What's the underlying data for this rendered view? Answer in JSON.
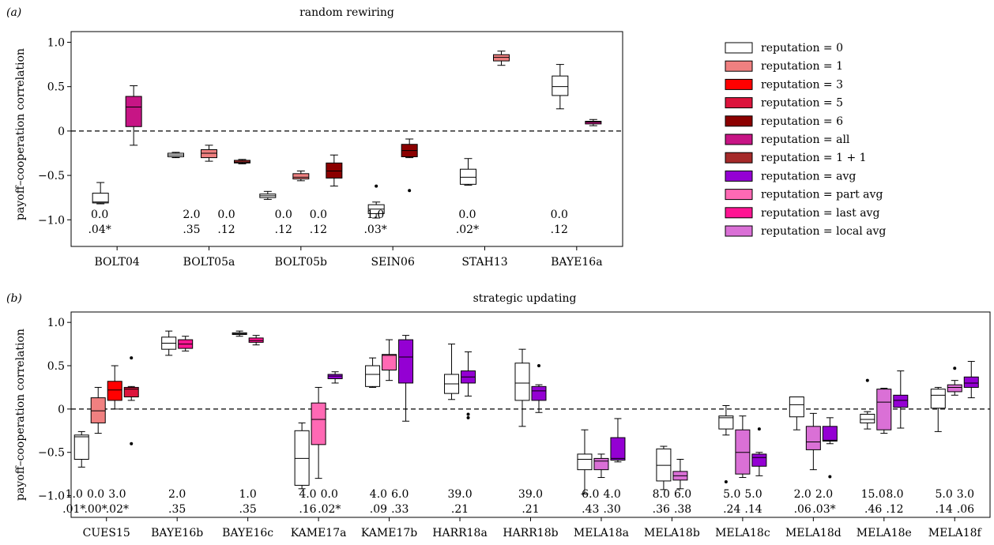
{
  "colors": {
    "rep0": "#ffffff",
    "rep1": "#f08080",
    "rep3": "#ff0000",
    "rep5": "#dc143c",
    "rep6": "#8b0000",
    "repall": "#c71585",
    "rep11": "#a52a2a",
    "repavg": "#9400d3",
    "reppartavg": "#ff69b4",
    "replastavg": "#ff1493",
    "replocalavg": "#da70d6"
  },
  "legend": [
    {
      "key": "rep0",
      "label": "reputation = 0"
    },
    {
      "key": "rep1",
      "label": "reputation = 1"
    },
    {
      "key": "rep3",
      "label": "reputation = 3"
    },
    {
      "key": "rep5",
      "label": "reputation = 5"
    },
    {
      "key": "rep6",
      "label": "reputation = 6"
    },
    {
      "key": "repall",
      "label": "reputation = all"
    },
    {
      "key": "rep11",
      "label": "reputation = 1 + 1"
    },
    {
      "key": "repavg",
      "label": "reputation = avg"
    },
    {
      "key": "reppartavg",
      "label": "reputation = part avg"
    },
    {
      "key": "replastavg",
      "label": "reputation = last avg"
    },
    {
      "key": "replocalavg",
      "label": "reputation = local avg"
    }
  ],
  "chart_data": [
    {
      "type": "box",
      "panel": "(a)",
      "title": "random rewiring",
      "ylabel": "payoff–cooperation correlation",
      "ylim": [
        -1.3,
        1.12
      ],
      "yticks": [
        1.0,
        0.5,
        0,
        -0.5,
        -1.0
      ],
      "ytick_labels": [
        "1.0",
        "0.5",
        "0",
        "−0.5",
        "−1.0"
      ],
      "reference_line": 0,
      "categories": [
        "BOLT04",
        "BOLT05a",
        "BOLT05b",
        "SEIN06",
        "STAH13",
        "BAYE16a"
      ],
      "boxes": [
        {
          "cat": 0,
          "slot": 0,
          "n": 2,
          "rep": "rep0",
          "min": -0.82,
          "q1": -0.81,
          "med": -0.8,
          "q3": -0.7,
          "max": -0.58,
          "outliers": []
        },
        {
          "cat": 0,
          "slot": 1,
          "n": 2,
          "rep": "repall",
          "min": -0.16,
          "q1": 0.05,
          "med": 0.27,
          "q3": 0.39,
          "max": 0.51,
          "outliers": []
        },
        {
          "cat": 1,
          "slot": 0,
          "n": 3,
          "rep": "rep0",
          "min": -0.3,
          "q1": -0.29,
          "med": -0.27,
          "q3": -0.25,
          "max": -0.24,
          "outliers": []
        },
        {
          "cat": 1,
          "slot": 1,
          "n": 3,
          "rep": "rep1",
          "min": -0.34,
          "q1": -0.3,
          "med": -0.25,
          "q3": -0.21,
          "max": -0.16,
          "outliers": []
        },
        {
          "cat": 1,
          "slot": 2,
          "n": 3,
          "rep": "rep11",
          "min": -0.37,
          "q1": -0.36,
          "med": -0.35,
          "q3": -0.33,
          "max": -0.32,
          "outliers": []
        },
        {
          "cat": 2,
          "slot": 0,
          "n": 3,
          "rep": "rep0",
          "min": -0.77,
          "q1": -0.75,
          "med": -0.73,
          "q3": -0.71,
          "max": -0.68,
          "outliers": []
        },
        {
          "cat": 2,
          "slot": 1,
          "n": 3,
          "rep": "rep1",
          "min": -0.56,
          "q1": -0.54,
          "med": -0.52,
          "q3": -0.48,
          "max": -0.45,
          "outliers": []
        },
        {
          "cat": 2,
          "slot": 2,
          "n": 3,
          "rep": "rep6",
          "min": -0.62,
          "q1": -0.53,
          "med": -0.45,
          "q3": -0.36,
          "max": -0.27,
          "outliers": []
        },
        {
          "cat": 3,
          "slot": 0,
          "n": 2,
          "rep": "rep0",
          "min": -0.98,
          "q1": -0.93,
          "med": -0.88,
          "q3": -0.83,
          "max": -0.8,
          "outliers": [
            -0.62
          ]
        },
        {
          "cat": 3,
          "slot": 1,
          "n": 2,
          "rep": "rep6",
          "min": -0.3,
          "q1": -0.29,
          "med": -0.22,
          "q3": -0.15,
          "max": -0.09,
          "outliers": [
            -0.67
          ]
        },
        {
          "cat": 4,
          "slot": 0,
          "n": 2,
          "rep": "rep0",
          "min": -0.61,
          "q1": -0.6,
          "med": -0.52,
          "q3": -0.43,
          "max": -0.31,
          "outliers": []
        },
        {
          "cat": 4,
          "slot": 1,
          "n": 2,
          "rep": "rep1",
          "min": 0.74,
          "q1": 0.79,
          "med": 0.83,
          "q3": 0.86,
          "max": 0.9,
          "outliers": []
        },
        {
          "cat": 5,
          "slot": 0,
          "n": 2,
          "rep": "rep0",
          "min": 0.25,
          "q1": 0.4,
          "med": 0.5,
          "q3": 0.62,
          "max": 0.75,
          "outliers": []
        },
        {
          "cat": 5,
          "slot": 1,
          "n": 2,
          "rep": "repall",
          "min": 0.06,
          "q1": 0.08,
          "med": 0.1,
          "q3": 0.11,
          "max": 0.13,
          "outliers": []
        }
      ],
      "stats": [
        {
          "cat": 0,
          "slot": 0,
          "n": 2,
          "top": "0.0",
          "bottom": ".04*"
        },
        {
          "cat": 1,
          "slot": 0,
          "n": 2,
          "top": "2.0",
          "bottom": ".35"
        },
        {
          "cat": 1,
          "slot": 1,
          "n": 2,
          "top": "0.0",
          "bottom": ".12"
        },
        {
          "cat": 2,
          "slot": 0,
          "n": 2,
          "top": "0.0",
          "bottom": ".12"
        },
        {
          "cat": 2,
          "slot": 1,
          "n": 2,
          "top": "0.0",
          "bottom": ".12"
        },
        {
          "cat": 3,
          "slot": 0,
          "n": 2,
          "top": "1.0",
          "bottom": ".03*"
        },
        {
          "cat": 4,
          "slot": 0,
          "n": 2,
          "top": "0.0",
          "bottom": ".02*"
        },
        {
          "cat": 5,
          "slot": 0,
          "n": 2,
          "top": "0.0",
          "bottom": ".12"
        }
      ]
    },
    {
      "type": "box",
      "panel": "(b)",
      "title": "strategic updating",
      "ylabel": "payoff–cooperation correlation",
      "ylim": [
        -1.25,
        1.12
      ],
      "yticks": [
        1.0,
        0.5,
        0,
        -0.5,
        -1.0
      ],
      "ytick_labels": [
        "1.0",
        "0.5",
        "0",
        "−0.5",
        "−1.0"
      ],
      "reference_line": 0,
      "categories": [
        "CUES15",
        "BAYE16b",
        "BAYE16c",
        "KAME17a",
        "KAME17b",
        "HARR18a",
        "HARR18b",
        "MELA18a",
        "MELA18b",
        "MELA18c",
        "MELA18d",
        "MELA18e",
        "MELA18f"
      ],
      "boxes": [
        {
          "cat": 0,
          "slot": 0,
          "n": 4,
          "rep": "rep0",
          "min": -0.67,
          "q1": -0.58,
          "med": -0.32,
          "q3": -0.3,
          "max": -0.26,
          "outliers": []
        },
        {
          "cat": 0,
          "slot": 1,
          "n": 4,
          "rep": "rep1",
          "min": -0.28,
          "q1": -0.16,
          "med": -0.02,
          "q3": 0.13,
          "max": 0.25,
          "outliers": []
        },
        {
          "cat": 0,
          "slot": 2,
          "n": 4,
          "rep": "rep3",
          "min": 0.0,
          "q1": 0.1,
          "med": 0.22,
          "q3": 0.32,
          "max": 0.5,
          "outliers": []
        },
        {
          "cat": 0,
          "slot": 3,
          "n": 4,
          "rep": "rep5",
          "min": 0.1,
          "q1": 0.14,
          "med": 0.23,
          "q3": 0.25,
          "max": 0.26,
          "outliers": [
            0.59,
            -0.4
          ]
        },
        {
          "cat": 1,
          "slot": 0,
          "n": 2,
          "rep": "rep0",
          "min": 0.62,
          "q1": 0.69,
          "med": 0.76,
          "q3": 0.83,
          "max": 0.9,
          "outliers": []
        },
        {
          "cat": 1,
          "slot": 1,
          "n": 2,
          "rep": "replastavg",
          "min": 0.67,
          "q1": 0.7,
          "med": 0.75,
          "q3": 0.8,
          "max": 0.84,
          "outliers": []
        },
        {
          "cat": 2,
          "slot": 0,
          "n": 2,
          "rep": "rep0",
          "min": 0.84,
          "q1": 0.86,
          "med": 0.87,
          "q3": 0.88,
          "max": 0.9,
          "outliers": []
        },
        {
          "cat": 2,
          "slot": 1,
          "n": 2,
          "rep": "replastavg",
          "min": 0.74,
          "q1": 0.77,
          "med": 0.79,
          "q3": 0.82,
          "max": 0.85,
          "outliers": []
        },
        {
          "cat": 3,
          "slot": 0,
          "n": 3,
          "rep": "rep0",
          "min": -0.92,
          "q1": -0.88,
          "med": -0.57,
          "q3": -0.25,
          "max": -0.16,
          "outliers": []
        },
        {
          "cat": 3,
          "slot": 1,
          "n": 3,
          "rep": "reppartavg",
          "min": -0.8,
          "q1": -0.41,
          "med": -0.12,
          "q3": 0.07,
          "max": 0.25,
          "outliers": []
        },
        {
          "cat": 3,
          "slot": 2,
          "n": 3,
          "rep": "repavg",
          "min": 0.3,
          "q1": 0.35,
          "med": 0.38,
          "q3": 0.4,
          "max": 0.43,
          "outliers": []
        },
        {
          "cat": 4,
          "slot": 0,
          "n": 3,
          "rep": "rep0",
          "min": 0.25,
          "q1": 0.26,
          "med": 0.4,
          "q3": 0.5,
          "max": 0.59,
          "outliers": []
        },
        {
          "cat": 4,
          "slot": 1,
          "n": 3,
          "rep": "reppartavg",
          "min": 0.33,
          "q1": 0.45,
          "med": 0.62,
          "q3": 0.63,
          "max": 0.8,
          "outliers": []
        },
        {
          "cat": 4,
          "slot": 2,
          "n": 3,
          "rep": "repavg",
          "min": -0.14,
          "q1": 0.3,
          "med": 0.6,
          "q3": 0.8,
          "max": 0.85,
          "outliers": []
        },
        {
          "cat": 5,
          "slot": 0,
          "n": 2,
          "rep": "rep0",
          "min": 0.11,
          "q1": 0.18,
          "med": 0.29,
          "q3": 0.4,
          "max": 0.75,
          "outliers": []
        },
        {
          "cat": 5,
          "slot": 1,
          "n": 2,
          "rep": "repavg",
          "min": 0.15,
          "q1": 0.3,
          "med": 0.37,
          "q3": 0.44,
          "max": 0.66,
          "outliers": [
            -0.06,
            -0.1
          ]
        },
        {
          "cat": 6,
          "slot": 0,
          "n": 2,
          "rep": "rep0",
          "min": -0.2,
          "q1": 0.1,
          "med": 0.3,
          "q3": 0.53,
          "max": 0.69,
          "outliers": []
        },
        {
          "cat": 6,
          "slot": 1,
          "n": 2,
          "rep": "repavg",
          "min": -0.04,
          "q1": 0.1,
          "med": 0.21,
          "q3": 0.26,
          "max": 0.28,
          "outliers": [
            0.5
          ]
        },
        {
          "cat": 7,
          "slot": 0,
          "n": 3,
          "rep": "rep0",
          "min": -0.98,
          "q1": -0.7,
          "med": -0.58,
          "q3": -0.52,
          "max": -0.24,
          "outliers": []
        },
        {
          "cat": 7,
          "slot": 1,
          "n": 3,
          "rep": "replocalavg",
          "min": -0.79,
          "q1": -0.7,
          "med": -0.6,
          "q3": -0.57,
          "max": -0.52,
          "outliers": []
        },
        {
          "cat": 7,
          "slot": 2,
          "n": 3,
          "rep": "repavg",
          "min": -0.61,
          "q1": -0.59,
          "med": -0.57,
          "q3": -0.33,
          "max": -0.11,
          "outliers": []
        },
        {
          "cat": 8,
          "slot": 0,
          "n": 2,
          "rep": "rep0",
          "min": -0.93,
          "q1": -0.83,
          "med": -0.65,
          "q3": -0.46,
          "max": -0.43,
          "outliers": []
        },
        {
          "cat": 8,
          "slot": 1,
          "n": 2,
          "rep": "replocalavg",
          "min": -0.92,
          "q1": -0.82,
          "med": -0.77,
          "q3": -0.72,
          "max": -0.58,
          "outliers": []
        },
        {
          "cat": 9,
          "slot": 0,
          "n": 3,
          "rep": "rep0",
          "min": -0.3,
          "q1": -0.23,
          "med": -0.1,
          "q3": -0.08,
          "max": 0.04,
          "outliers": [
            -0.84
          ]
        },
        {
          "cat": 9,
          "slot": 1,
          "n": 3,
          "rep": "replocalavg",
          "min": -0.79,
          "q1": -0.75,
          "med": -0.5,
          "q3": -0.24,
          "max": -0.08,
          "outliers": []
        },
        {
          "cat": 9,
          "slot": 2,
          "n": 3,
          "rep": "repavg",
          "min": -0.77,
          "q1": -0.66,
          "med": -0.56,
          "q3": -0.52,
          "max": -0.5,
          "outliers": [
            -0.23
          ]
        },
        {
          "cat": 10,
          "slot": 0,
          "n": 3,
          "rep": "rep0",
          "min": -0.24,
          "q1": -0.09,
          "med": 0.05,
          "q3": 0.14,
          "max": 0.14,
          "outliers": []
        },
        {
          "cat": 10,
          "slot": 1,
          "n": 3,
          "rep": "replocalavg",
          "min": -0.7,
          "q1": -0.47,
          "med": -0.38,
          "q3": -0.2,
          "max": -0.05,
          "outliers": []
        },
        {
          "cat": 10,
          "slot": 2,
          "n": 3,
          "rep": "repavg",
          "min": -0.4,
          "q1": -0.37,
          "med": -0.36,
          "q3": -0.2,
          "max": -0.1,
          "outliers": [
            -0.78
          ]
        },
        {
          "cat": 11,
          "slot": 0,
          "n": 3,
          "rep": "rep0",
          "min": -0.23,
          "q1": -0.16,
          "med": -0.12,
          "q3": -0.06,
          "max": -0.03,
          "outliers": [
            0.33
          ]
        },
        {
          "cat": 11,
          "slot": 1,
          "n": 3,
          "rep": "replocalavg",
          "min": -0.28,
          "q1": -0.24,
          "med": 0.08,
          "q3": 0.23,
          "max": 0.24,
          "outliers": []
        },
        {
          "cat": 11,
          "slot": 2,
          "n": 3,
          "rep": "repavg",
          "min": -0.22,
          "q1": 0.02,
          "med": 0.1,
          "q3": 0.16,
          "max": 0.44,
          "outliers": []
        },
        {
          "cat": 12,
          "slot": 0,
          "n": 3,
          "rep": "rep0",
          "min": -0.26,
          "q1": 0.01,
          "med": 0.16,
          "q3": 0.23,
          "max": 0.25,
          "outliers": []
        },
        {
          "cat": 12,
          "slot": 1,
          "n": 3,
          "rep": "replocalavg",
          "min": 0.16,
          "q1": 0.2,
          "med": 0.25,
          "q3": 0.28,
          "max": 0.33,
          "outliers": [
            0.47
          ]
        },
        {
          "cat": 12,
          "slot": 2,
          "n": 3,
          "rep": "repavg",
          "min": 0.13,
          "q1": 0.25,
          "med": 0.3,
          "q3": 0.37,
          "max": 0.55,
          "outliers": []
        }
      ],
      "stats": [
        {
          "cat": 0,
          "slot": 0,
          "n": 4,
          "top": "1.0",
          "bottom": ".01*"
        },
        {
          "cat": 0,
          "slot": 1,
          "n": 4,
          "top": "0.0",
          "bottom": ".00*"
        },
        {
          "cat": 0,
          "slot": 2,
          "n": 4,
          "top": "3.0",
          "bottom": ".02*"
        },
        {
          "cat": 1,
          "slot": 0,
          "n": 1,
          "top": "2.0",
          "bottom": ".35"
        },
        {
          "cat": 2,
          "slot": 0,
          "n": 1,
          "top": "1.0",
          "bottom": ".35"
        },
        {
          "cat": 3,
          "slot": 0,
          "n": 2,
          "top": "4.0",
          "bottom": ".16"
        },
        {
          "cat": 3,
          "slot": 1,
          "n": 2,
          "top": "0.0",
          "bottom": ".02*"
        },
        {
          "cat": 4,
          "slot": 0,
          "n": 2,
          "top": "4.0",
          "bottom": ".09"
        },
        {
          "cat": 4,
          "slot": 1,
          "n": 2,
          "top": "6.0",
          "bottom": ".33"
        },
        {
          "cat": 5,
          "slot": 0,
          "n": 1,
          "top": "39.0",
          "bottom": ".21"
        },
        {
          "cat": 6,
          "slot": 0,
          "n": 1,
          "top": "39.0",
          "bottom": ".21"
        },
        {
          "cat": 7,
          "slot": 0,
          "n": 2,
          "top": "6.0",
          "bottom": ".43"
        },
        {
          "cat": 7,
          "slot": 1,
          "n": 2,
          "top": "4.0",
          "bottom": ".30"
        },
        {
          "cat": 8,
          "slot": 0,
          "n": 2,
          "top": "8.0",
          "bottom": ".36"
        },
        {
          "cat": 8,
          "slot": 1,
          "n": 2,
          "top": "6.0",
          "bottom": ".38"
        },
        {
          "cat": 9,
          "slot": 0,
          "n": 2,
          "top": "5.0",
          "bottom": ".24"
        },
        {
          "cat": 9,
          "slot": 1,
          "n": 2,
          "top": "5.0",
          "bottom": ".14"
        },
        {
          "cat": 10,
          "slot": 0,
          "n": 2,
          "top": "2.0",
          "bottom": ".06"
        },
        {
          "cat": 10,
          "slot": 1,
          "n": 2,
          "top": "2.0",
          "bottom": ".03*"
        },
        {
          "cat": 11,
          "slot": 0,
          "n": 2,
          "top": "15.0",
          "bottom": ".46"
        },
        {
          "cat": 11,
          "slot": 1,
          "n": 2,
          "top": "8.0",
          "bottom": ".12"
        },
        {
          "cat": 12,
          "slot": 0,
          "n": 2,
          "top": "5.0",
          "bottom": ".14"
        },
        {
          "cat": 12,
          "slot": 1,
          "n": 2,
          "top": "3.0",
          "bottom": ".06"
        }
      ]
    }
  ]
}
